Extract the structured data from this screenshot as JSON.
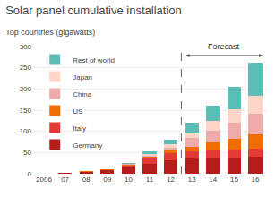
{
  "chart_data": {
    "type": "bar",
    "title": "Solar panel cumulative installation",
    "subtitle": "Top countries (gigawatts)",
    "categories": [
      "2006",
      "07",
      "08",
      "09",
      "10",
      "11",
      "12",
      "13",
      "14",
      "15",
      "16"
    ],
    "series": [
      {
        "name": "Germany",
        "color": "#b71c1c",
        "values": [
          1,
          2,
          5,
          8,
          17,
          24,
          32,
          35,
          37,
          39,
          41
        ]
      },
      {
        "name": "Italy",
        "color": "#e53935",
        "values": [
          0,
          0,
          0,
          1,
          3,
          12,
          16,
          17,
          18,
          18,
          19
        ]
      },
      {
        "name": "US",
        "color": "#ef6c00",
        "values": [
          0,
          0,
          1,
          1,
          2,
          4,
          7,
          12,
          18,
          25,
          34
        ]
      },
      {
        "name": "China",
        "color": "#efaaaa",
        "values": [
          0,
          0,
          0,
          0,
          1,
          3,
          7,
          20,
          28,
          38,
          48
        ]
      },
      {
        "name": "Japan",
        "color": "#ffd5c8",
        "values": [
          0,
          0,
          0,
          0,
          1,
          3,
          7,
          13,
          23,
          33,
          42
        ]
      },
      {
        "name": "Rest of world",
        "color": "#5bbdb5",
        "values": [
          0,
          0,
          1,
          1,
          2,
          6,
          12,
          23,
          36,
          52,
          78
        ]
      }
    ],
    "stacked": true,
    "ylim": [
      0,
      300
    ],
    "yticks": [
      0,
      50,
      100,
      150,
      200,
      250,
      300
    ],
    "grid": true,
    "legend": "upper left",
    "annotations": [
      {
        "text": "Forecast",
        "x": [
          "13",
          "16"
        ]
      }
    ]
  }
}
